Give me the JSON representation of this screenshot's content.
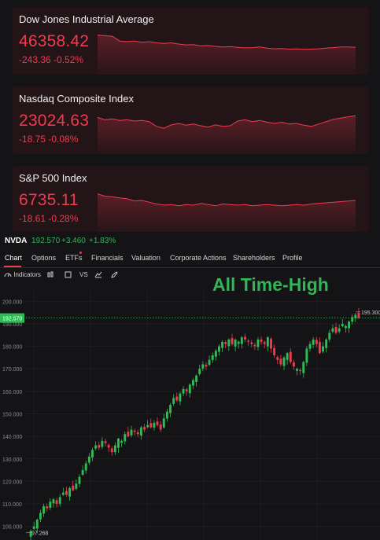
{
  "indices": [
    {
      "name": "Dow Jones Industrial Average",
      "price": "46358.42",
      "change": "-243.36 -0.52%",
      "spark": [
        0.2,
        0.22,
        0.24,
        0.4,
        0.42,
        0.4,
        0.44,
        0.42,
        0.46,
        0.48,
        0.46,
        0.5,
        0.53,
        0.52,
        0.56,
        0.55,
        0.58,
        0.6,
        0.59,
        0.61,
        0.63,
        0.62,
        0.6,
        0.64,
        0.66,
        0.65,
        0.67,
        0.66,
        0.68,
        0.67,
        0.66,
        0.64,
        0.62,
        0.6,
        0.6,
        0.61
      ]
    },
    {
      "name": "Nasdaq Composite Index",
      "price": "23024.63",
      "change": "-18.75 -0.08%",
      "spark": [
        0.3,
        0.38,
        0.35,
        0.4,
        0.38,
        0.42,
        0.4,
        0.44,
        0.6,
        0.66,
        0.55,
        0.5,
        0.56,
        0.52,
        0.58,
        0.62,
        0.55,
        0.6,
        0.58,
        0.42,
        0.38,
        0.44,
        0.4,
        0.46,
        0.5,
        0.46,
        0.52,
        0.5,
        0.56,
        0.6,
        0.52,
        0.44,
        0.36,
        0.32,
        0.28,
        0.24
      ]
    },
    {
      "name": "S&P 500 Index",
      "price": "6735.11",
      "change": "-18.61 -0.28%",
      "spark": [
        0.2,
        0.28,
        0.3,
        0.34,
        0.36,
        0.44,
        0.42,
        0.48,
        0.54,
        0.58,
        0.56,
        0.6,
        0.56,
        0.58,
        0.52,
        0.56,
        0.6,
        0.54,
        0.56,
        0.58,
        0.56,
        0.6,
        0.58,
        0.56,
        0.58,
        0.6,
        0.58,
        0.56,
        0.58,
        0.54,
        0.52,
        0.5,
        0.48,
        0.46,
        0.44,
        0.42
      ]
    }
  ],
  "stock": {
    "symbol": "NVDA",
    "price": "192.570",
    "change": "+3.460",
    "change_pct": "+1.83%"
  },
  "tabs": [
    "Chart",
    "Options",
    "ETFs",
    "Financials",
    "Valuation",
    "Corporate Actions",
    "Shareholders",
    "Profile"
  ],
  "toolbar": {
    "indicators": "Indicators",
    "vs": "VS"
  },
  "annotation": "All Time-High",
  "chart_data": {
    "type": "candlestick",
    "y_ticks": [
      "200.000",
      "190.000",
      "180.000",
      "170.000",
      "160.000",
      "150.000",
      "140.000",
      "130.000",
      "120.000",
      "110.000",
      "100.000"
    ],
    "y_range": [
      95,
      205
    ],
    "current_price_label": "192.570",
    "high_label": "195.300",
    "low_label": "97.268",
    "closes": [
      98,
      100,
      103,
      106,
      109,
      108,
      111,
      112,
      110,
      113,
      115,
      114,
      117,
      116,
      119,
      122,
      125,
      128,
      131,
      134,
      136,
      135,
      138,
      137,
      135,
      133,
      136,
      139,
      138,
      141,
      140,
      143,
      142,
      141,
      144,
      143,
      145,
      144,
      146,
      145,
      143,
      148,
      151,
      154,
      157,
      156,
      159,
      161,
      160,
      163,
      165,
      167,
      170,
      172,
      171,
      174,
      176,
      178,
      180,
      182,
      181,
      183,
      181,
      183,
      182,
      184,
      183,
      182,
      181,
      180,
      183,
      182,
      181,
      184,
      179,
      176,
      174,
      172,
      175,
      177,
      173,
      171,
      170,
      169,
      173,
      179,
      181,
      183,
      181,
      177,
      180,
      183,
      186,
      188,
      186,
      188,
      190,
      189,
      191,
      193,
      194,
      192.57
    ],
    "up_color": "#2ebd55",
    "down_color": "#ef3b4e"
  },
  "colors": {
    "down": "#ef3b4e",
    "up": "#31b655",
    "bg": "#141417"
  }
}
